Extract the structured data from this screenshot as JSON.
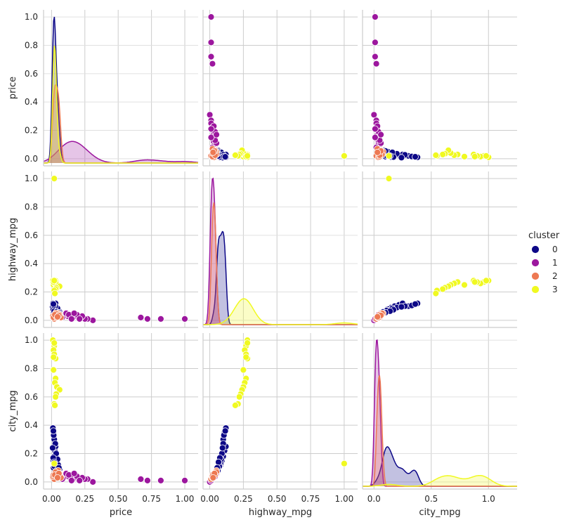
{
  "chart_data": {
    "type": "scatter",
    "subtype": "pairplot",
    "variables": [
      "price",
      "highway_mpg",
      "city_mpg"
    ],
    "axis_labels": {
      "x": [
        "price",
        "highway_mpg",
        "city_mpg"
      ],
      "y": [
        "price",
        "highway_mpg",
        "city_mpg"
      ]
    },
    "legend": {
      "title": "cluster",
      "placement": "right",
      "entries": [
        {
          "label": "0",
          "color": "#0d0887"
        },
        {
          "label": "1",
          "color": "#9c179e"
        },
        {
          "label": "2",
          "color": "#ed7953"
        },
        {
          "label": "3",
          "color": "#f0f921"
        }
      ]
    },
    "columns": [
      {
        "xlim": [
          -0.06,
          1.1
        ],
        "ticks": [
          0.0,
          0.25,
          0.5,
          0.75,
          1.0
        ],
        "tick_labels": [
          "0.00",
          "0.25",
          "0.50",
          "0.75",
          "1.00"
        ]
      },
      {
        "xlim": [
          -0.05,
          1.1
        ],
        "ticks": [
          0.0,
          0.25,
          0.5,
          0.75,
          1.0
        ],
        "tick_labels": [
          "0.00",
          "0.25",
          "0.50",
          "0.75",
          "1.00"
        ]
      },
      {
        "xlim": [
          -0.1,
          1.25
        ],
        "ticks": [
          0.0,
          0.5,
          1.0
        ],
        "tick_labels": [
          "0.0",
          "0.5",
          "1.0"
        ]
      }
    ],
    "rows": [
      {
        "ylim": [
          -0.05,
          1.05
        ],
        "ticks": [
          0.0,
          0.2,
          0.4,
          0.6,
          0.8,
          1.0
        ],
        "tick_labels": [
          "0.0",
          "0.2",
          "0.4",
          "0.6",
          "0.8",
          "1.0"
        ]
      },
      {
        "ylim": [
          -0.05,
          1.05
        ],
        "ticks": [
          0.0,
          0.2,
          0.4,
          0.6,
          0.8,
          1.0
        ],
        "tick_labels": [
          "0.0",
          "0.2",
          "0.4",
          "0.6",
          "0.8",
          "1.0"
        ]
      },
      {
        "ylim": [
          -0.05,
          1.05
        ],
        "ticks": [
          0.0,
          0.2,
          0.4,
          0.6,
          0.8,
          1.0
        ],
        "tick_labels": [
          "0.0",
          "0.2",
          "0.4",
          "0.6",
          "0.8",
          "1.0"
        ]
      }
    ],
    "grid": true,
    "points": {
      "0": [
        [
          0.01,
          0.03,
          0.03
        ],
        [
          0.015,
          0.06,
          0.1
        ],
        [
          0.02,
          0.08,
          0.12
        ],
        [
          0.012,
          0.09,
          0.15
        ],
        [
          0.018,
          0.1,
          0.18
        ],
        [
          0.025,
          0.11,
          0.22
        ],
        [
          0.03,
          0.12,
          0.25
        ],
        [
          0.02,
          0.1,
          0.3
        ],
        [
          0.015,
          0.11,
          0.35
        ],
        [
          0.01,
          0.12,
          0.38
        ],
        [
          0.035,
          0.09,
          0.2
        ],
        [
          0.04,
          0.08,
          0.13
        ],
        [
          0.05,
          0.07,
          0.12
        ],
        [
          0.06,
          0.06,
          0.09
        ],
        [
          0.045,
          0.085,
          0.16
        ],
        [
          0.022,
          0.07,
          0.11
        ],
        [
          0.028,
          0.1,
          0.27
        ],
        [
          0.008,
          0.095,
          0.24
        ],
        [
          0.012,
          0.075,
          0.17
        ],
        [
          0.02,
          0.065,
          0.14
        ],
        [
          0.03,
          0.05,
          0.07
        ],
        [
          0.016,
          0.105,
          0.33
        ],
        [
          0.014,
          0.115,
          0.36
        ],
        [
          0.038,
          0.06,
          0.08
        ],
        [
          0.055,
          0.055,
          0.1
        ]
      ],
      "1": [
        [
          1.0,
          0.01,
          0.01
        ],
        [
          0.82,
          0.01,
          0.01
        ],
        [
          0.72,
          0.01,
          0.01
        ],
        [
          0.67,
          0.02,
          0.02
        ],
        [
          0.31,
          0.0,
          0.0
        ],
        [
          0.27,
          0.01,
          0.02
        ],
        [
          0.25,
          0.01,
          0.02
        ],
        [
          0.22,
          0.02,
          0.03
        ],
        [
          0.2,
          0.02,
          0.03
        ],
        [
          0.18,
          0.03,
          0.04
        ],
        [
          0.16,
          0.02,
          0.02
        ],
        [
          0.14,
          0.03,
          0.03
        ],
        [
          0.12,
          0.03,
          0.04
        ],
        [
          0.1,
          0.04,
          0.05
        ],
        [
          0.09,
          0.03,
          0.03
        ],
        [
          0.08,
          0.02,
          0.02
        ],
        [
          0.07,
          0.03,
          0.04
        ],
        [
          0.06,
          0.04,
          0.05
        ],
        [
          0.11,
          0.05,
          0.06
        ],
        [
          0.13,
          0.04,
          0.05
        ],
        [
          0.23,
          0.03,
          0.03
        ],
        [
          0.19,
          0.04,
          0.04
        ],
        [
          0.21,
          0.01,
          0.01
        ],
        [
          0.15,
          0.01,
          0.01
        ],
        [
          0.17,
          0.05,
          0.06
        ]
      ],
      "2": [
        [
          0.01,
          0.02,
          0.03
        ],
        [
          0.02,
          0.03,
          0.04
        ],
        [
          0.03,
          0.04,
          0.06
        ],
        [
          0.05,
          0.03,
          0.05
        ],
        [
          0.06,
          0.02,
          0.03
        ],
        [
          0.04,
          0.04,
          0.06
        ],
        [
          0.02,
          0.01,
          0.02
        ],
        [
          0.03,
          0.03,
          0.05
        ],
        [
          0.05,
          0.05,
          0.08
        ],
        [
          0.06,
          0.04,
          0.06
        ],
        [
          0.01,
          0.03,
          0.04
        ],
        [
          0.015,
          0.02,
          0.05
        ],
        [
          0.07,
          0.02,
          0.03
        ],
        [
          0.04,
          0.02,
          0.04
        ],
        [
          0.03,
          0.05,
          0.07
        ],
        [
          0.025,
          0.04,
          0.05
        ],
        [
          0.055,
          0.035,
          0.06
        ],
        [
          0.045,
          0.025,
          0.03
        ]
      ],
      "3": [
        [
          0.02,
          1.0,
          0.13
        ],
        [
          0.01,
          0.28,
          1.0
        ],
        [
          0.02,
          0.27,
          0.96
        ],
        [
          0.015,
          0.26,
          0.93
        ],
        [
          0.02,
          0.27,
          0.9
        ],
        [
          0.03,
          0.28,
          0.87
        ],
        [
          0.015,
          0.25,
          0.79
        ],
        [
          0.03,
          0.27,
          0.73
        ],
        [
          0.025,
          0.26,
          0.7
        ],
        [
          0.04,
          0.25,
          0.67
        ],
        [
          0.06,
          0.24,
          0.65
        ],
        [
          0.035,
          0.23,
          0.62
        ],
        [
          0.03,
          0.22,
          0.6
        ],
        [
          0.02,
          0.21,
          0.55
        ],
        [
          0.025,
          0.19,
          0.54
        ],
        [
          0.015,
          0.27,
          0.88
        ],
        [
          0.02,
          0.28,
          0.98
        ]
      ]
    }
  }
}
